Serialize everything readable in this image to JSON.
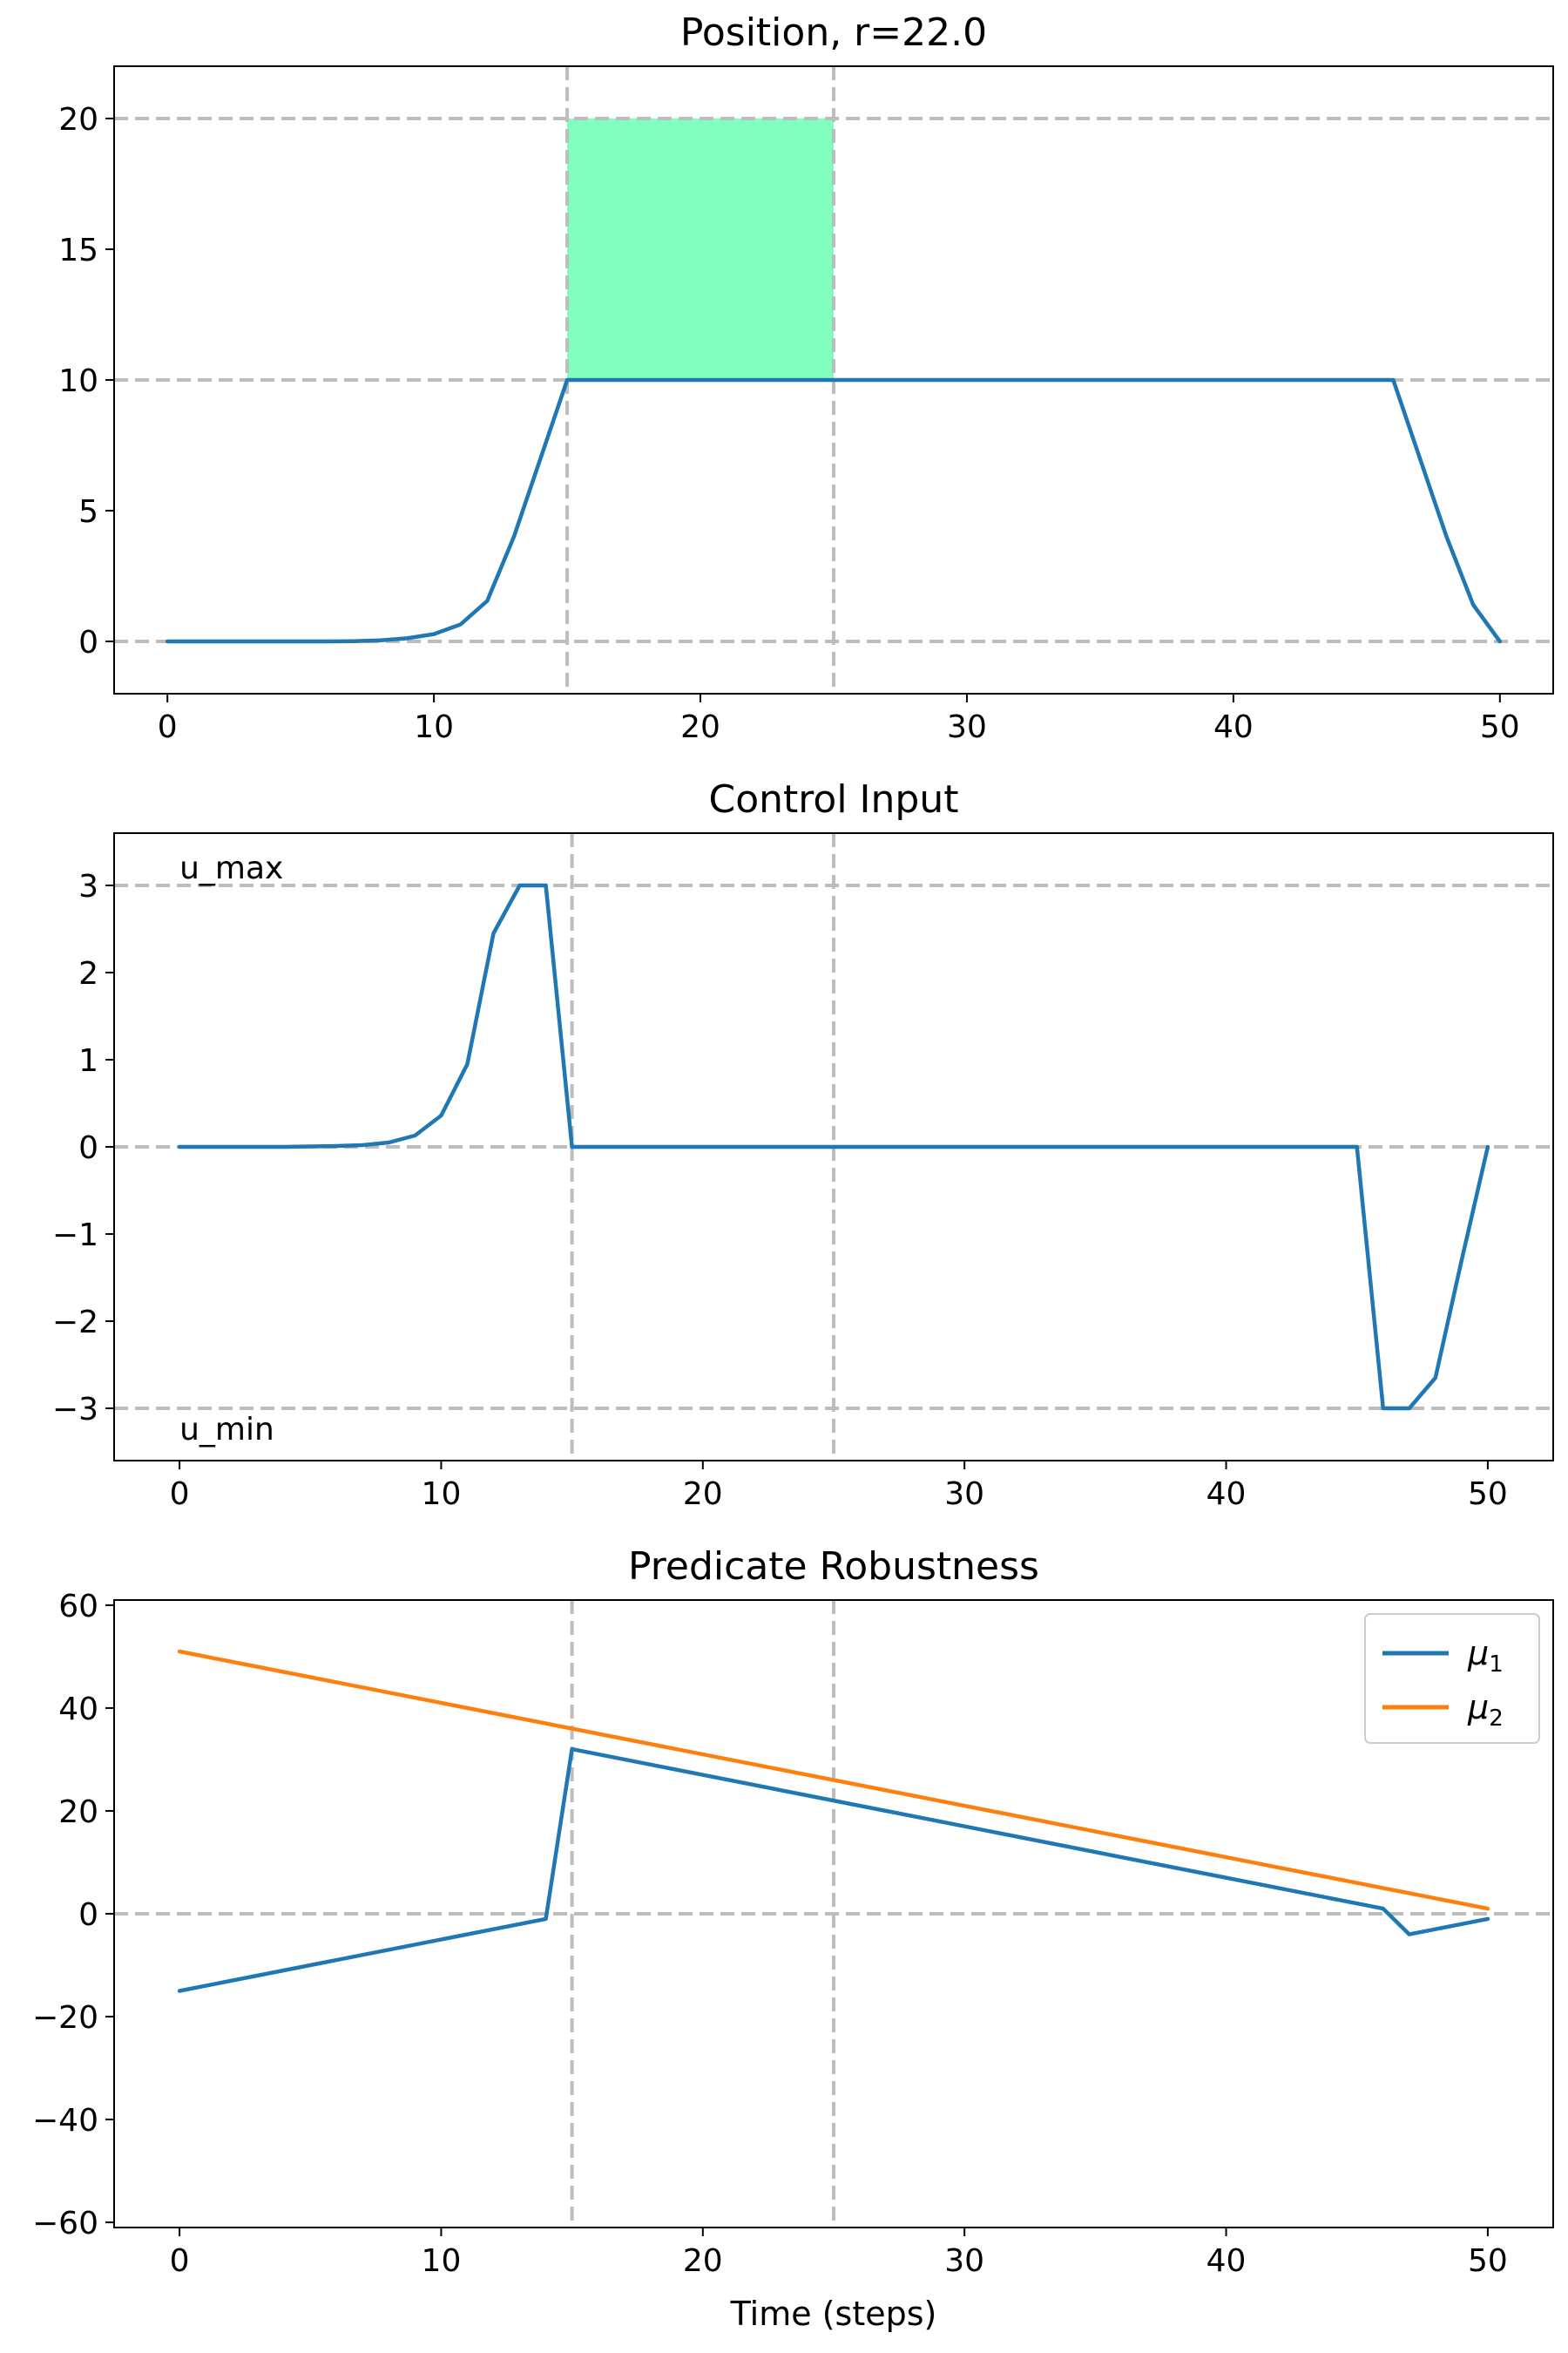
{
  "chart_data": [
    {
      "type": "line",
      "title": "Position, r=22.0",
      "xlabel": "",
      "ylabel": "",
      "xlim": [
        -2,
        52
      ],
      "ylim": [
        -2,
        22
      ],
      "x_ticks": [
        0,
        10,
        20,
        30,
        40,
        50
      ],
      "y_ticks": [
        0,
        5,
        10,
        15,
        20
      ],
      "h_lines": [
        0,
        10,
        20
      ],
      "v_lines": [
        15,
        25
      ],
      "shaded_region": {
        "x": [
          15,
          25
        ],
        "y": [
          10,
          20
        ],
        "color": "#80ffbf"
      },
      "annotations": [],
      "series": [
        {
          "color": "#1f77b4",
          "x": [
            0,
            1,
            2,
            3,
            4,
            5,
            6,
            7,
            8,
            9,
            10,
            11,
            12,
            13,
            14,
            15,
            16,
            17,
            18,
            19,
            20,
            21,
            22,
            23,
            24,
            25,
            26,
            27,
            28,
            29,
            30,
            31,
            32,
            33,
            34,
            35,
            36,
            37,
            38,
            39,
            40,
            41,
            42,
            43,
            44,
            45,
            46,
            47,
            48,
            49,
            50
          ],
          "values": [
            0,
            0,
            0,
            0,
            0,
            0,
            0,
            0.01,
            0.04,
            0.12,
            0.28,
            0.65,
            1.55,
            4.0,
            7.0,
            10,
            10,
            10,
            10,
            10,
            10,
            10,
            10,
            10,
            10,
            10,
            10,
            10,
            10,
            10,
            10,
            10,
            10,
            10,
            10,
            10,
            10,
            10,
            10,
            10,
            10,
            10,
            10,
            10,
            10,
            10,
            10,
            7.0,
            4.0,
            1.4,
            0
          ]
        }
      ]
    },
    {
      "type": "line",
      "title": "Control Input",
      "xlabel": "",
      "ylabel": "",
      "xlim": [
        -2.5,
        52.5
      ],
      "ylim": [
        -3.6,
        3.6
      ],
      "x_ticks": [
        0,
        10,
        20,
        30,
        40,
        50
      ],
      "y_ticks": [
        -3,
        -2,
        -1,
        0,
        1,
        2,
        3
      ],
      "y_tick_labels": [
        "−3",
        "−2",
        "−1",
        "0",
        "1",
        "2",
        "3"
      ],
      "h_lines": [
        -3,
        0,
        3
      ],
      "v_lines": [
        15,
        25
      ],
      "annotations": [
        {
          "text": "u_max",
          "x": 0,
          "y": 3,
          "position": "above"
        },
        {
          "text": "u_min",
          "x": 0,
          "y": -3,
          "position": "below"
        }
      ],
      "series": [
        {
          "color": "#1f77b4",
          "x": [
            0,
            1,
            2,
            3,
            4,
            5,
            6,
            7,
            8,
            9,
            10,
            11,
            12,
            13,
            14,
            15,
            16,
            17,
            18,
            19,
            20,
            21,
            22,
            23,
            24,
            25,
            26,
            27,
            28,
            29,
            30,
            31,
            32,
            33,
            34,
            35,
            36,
            37,
            38,
            39,
            40,
            41,
            42,
            43,
            44,
            45,
            46,
            47,
            48,
            49,
            50
          ],
          "values": [
            0,
            0,
            0,
            0,
            0,
            0.005,
            0.01,
            0.02,
            0.05,
            0.13,
            0.36,
            0.95,
            2.45,
            3,
            3,
            0,
            0,
            0,
            0,
            0,
            0,
            0,
            0,
            0,
            0,
            0,
            0,
            0,
            0,
            0,
            0,
            0,
            0,
            0,
            0,
            0,
            0,
            0,
            0,
            0,
            0,
            0,
            0,
            0,
            0,
            0,
            -3,
            -3,
            -2.65,
            -1.3,
            0
          ]
        }
      ]
    },
    {
      "type": "line",
      "title": "Predicate Robustness",
      "xlabel": "Time (steps)",
      "ylabel": "",
      "xlim": [
        -2.5,
        52.5
      ],
      "ylim": [
        -61,
        61
      ],
      "x_ticks": [
        0,
        10,
        20,
        30,
        40,
        50
      ],
      "y_ticks": [
        -60,
        -40,
        -20,
        0,
        20,
        40,
        60
      ],
      "y_tick_labels": [
        "−60",
        "−40",
        "−20",
        "0",
        "20",
        "40",
        "60"
      ],
      "h_lines": [
        0
      ],
      "v_lines": [
        15,
        25
      ],
      "legend": {
        "placement": "top-right"
      },
      "annotations": [],
      "series": [
        {
          "name": "μ",
          "name_subscript": "1",
          "color": "#1f77b4",
          "x": [
            0,
            14,
            15,
            46,
            47,
            50
          ],
          "values": [
            -15,
            -1,
            32,
            1,
            -4,
            -1
          ]
        },
        {
          "name": "μ",
          "name_subscript": "2",
          "color": "#ff7f0e",
          "x": [
            0,
            50
          ],
          "values": [
            51,
            1
          ]
        }
      ]
    }
  ]
}
